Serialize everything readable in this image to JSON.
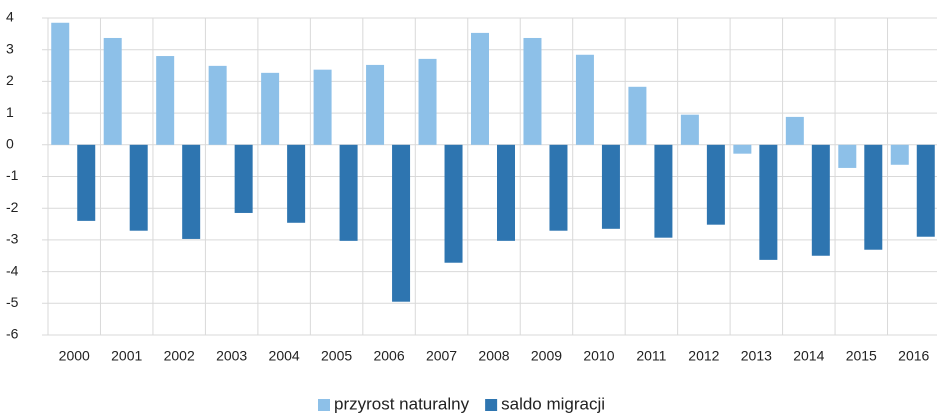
{
  "chart_data": {
    "type": "bar",
    "categories": [
      "2000",
      "2001",
      "2002",
      "2003",
      "2004",
      "2005",
      "2006",
      "2007",
      "2008",
      "2009",
      "2010",
      "2011",
      "2012",
      "2013",
      "2014",
      "2015",
      "2016"
    ],
    "series": [
      {
        "name": "przyrost naturalny",
        "color": "#8dc0e8",
        "values": [
          3.85,
          3.37,
          2.8,
          2.49,
          2.27,
          2.37,
          2.52,
          2.71,
          3.53,
          3.37,
          2.84,
          1.83,
          0.95,
          -0.28,
          0.88,
          -0.73,
          -0.63
        ]
      },
      {
        "name": "saldo migracji",
        "color": "#2e75b0",
        "values": [
          -2.4,
          -2.71,
          -2.97,
          -2.15,
          -2.46,
          -3.03,
          -4.95,
          -3.72,
          -3.03,
          -2.71,
          -2.65,
          -2.93,
          -2.52,
          -3.63,
          -3.5,
          -3.31,
          -2.9
        ]
      }
    ],
    "ylim": [
      -6,
      4
    ],
    "yticks": [
      -6,
      -5,
      -4,
      -3,
      -2,
      -1,
      0,
      1,
      2,
      3,
      4
    ],
    "grid": true,
    "legend": "bottom"
  }
}
